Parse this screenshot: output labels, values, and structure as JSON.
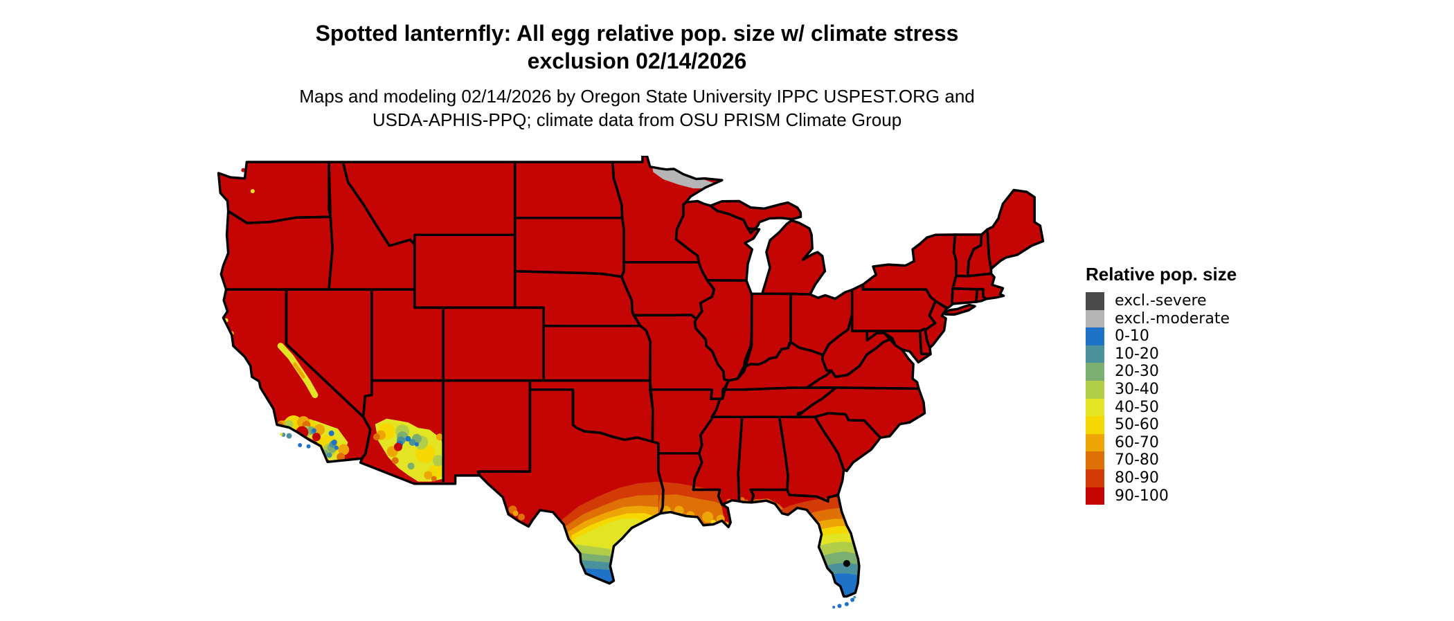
{
  "title": {
    "line1": "Spotted lanternfly: All egg relative pop. size w/ climate stress",
    "line2": "exclusion 02/14/2026"
  },
  "subtitle": {
    "line1": "Maps and modeling 02/14/2026 by Oregon State University IPPC USPEST.ORG and",
    "line2": "USDA-APHIS-PPQ; climate data from OSU PRISM Climate Group"
  },
  "legend": {
    "title": "Relative pop. size",
    "entries": [
      {
        "label": "excl.-severe",
        "color": "#4A4A4A"
      },
      {
        "label": "excl.-moderate",
        "color": "#B5B5B5"
      },
      {
        "label": "0-10",
        "color": "#1E73C9"
      },
      {
        "label": "10-20",
        "color": "#4B919C"
      },
      {
        "label": "20-30",
        "color": "#7CAE70"
      },
      {
        "label": "30-40",
        "color": "#B2CE48"
      },
      {
        "label": "40-50",
        "color": "#E3E424"
      },
      {
        "label": "50-60",
        "color": "#F5D800"
      },
      {
        "label": "60-70",
        "color": "#EDA606"
      },
      {
        "label": "70-80",
        "color": "#DE7005"
      },
      {
        "label": "80-90",
        "color": "#D23B06"
      },
      {
        "label": "90-100",
        "color": "#C50404"
      }
    ]
  },
  "map": {
    "type": "raster-choropleth",
    "region": "Continental United States",
    "background": "#ffffff",
    "state_border_color": "#000000",
    "base_class": "90-100",
    "regions": [
      {
        "area": "most of the continental US",
        "class": "90-100"
      },
      {
        "area": "northern Minnesota border (arrowhead)",
        "class": "excl.-moderate"
      },
      {
        "area": "southern California coast and mountains",
        "classes": [
          "70-80",
          "60-70",
          "50-60",
          "40-50",
          "30-40",
          "20-30",
          "10-20",
          "0-10"
        ]
      },
      {
        "area": "Sierra Nevada crest (eastern California)",
        "classes": [
          "40-50",
          "60-70"
        ]
      },
      {
        "area": "southeastern Arizona",
        "classes": [
          "70-80",
          "60-70",
          "50-60",
          "40-50",
          "30-40",
          "20-30",
          "10-20",
          "0-10"
        ]
      },
      {
        "area": "south Texas gradient toward Rio Grande Valley",
        "classes": [
          "80-90",
          "70-80",
          "60-70",
          "50-60",
          "40-50",
          "30-40",
          "20-30",
          "10-20",
          "0-10"
        ]
      },
      {
        "area": "Big Bend Texas border",
        "classes": [
          "70-80",
          "60-70"
        ]
      },
      {
        "area": "coastal Louisiana",
        "classes": [
          "80-90",
          "70-80",
          "60-70",
          "50-60"
        ]
      },
      {
        "area": "Florida peninsula north-to-south gradient",
        "classes": [
          "80-90",
          "70-80",
          "60-70",
          "50-60",
          "40-50",
          "30-40",
          "20-30",
          "10-20",
          "0-10"
        ]
      },
      {
        "area": "Florida Keys",
        "class": "0-10"
      },
      {
        "area": "Channel Islands (California)",
        "classes": [
          "10-20",
          "0-10"
        ]
      }
    ]
  }
}
